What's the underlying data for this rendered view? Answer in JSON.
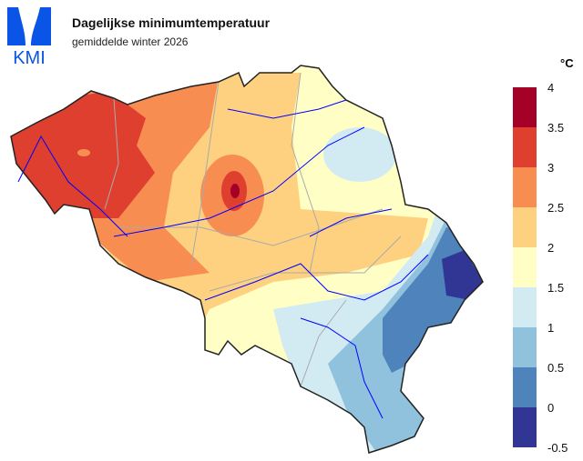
{
  "header": {
    "logo_text": "KMI",
    "title": "Dagelijkse minimumtemperatuur",
    "subtitle": "gemiddelde winter 2026"
  },
  "legend": {
    "unit": "°C",
    "ticks": [
      "4",
      "3.5",
      "3",
      "2.5",
      "2",
      "1.5",
      "1",
      "0.5",
      "0",
      "-0.5"
    ],
    "colors": [
      "#a50026",
      "#de3f2e",
      "#f88d52",
      "#fdd17f",
      "#ffffc5",
      "#d2ebf3",
      "#90c2de",
      "#4f83bb",
      "#313695"
    ]
  },
  "colors": {
    "logo": "#0a55e6",
    "rivers": "#0000ff",
    "borders": "#aaaaaa",
    "outline": "#222222"
  }
}
